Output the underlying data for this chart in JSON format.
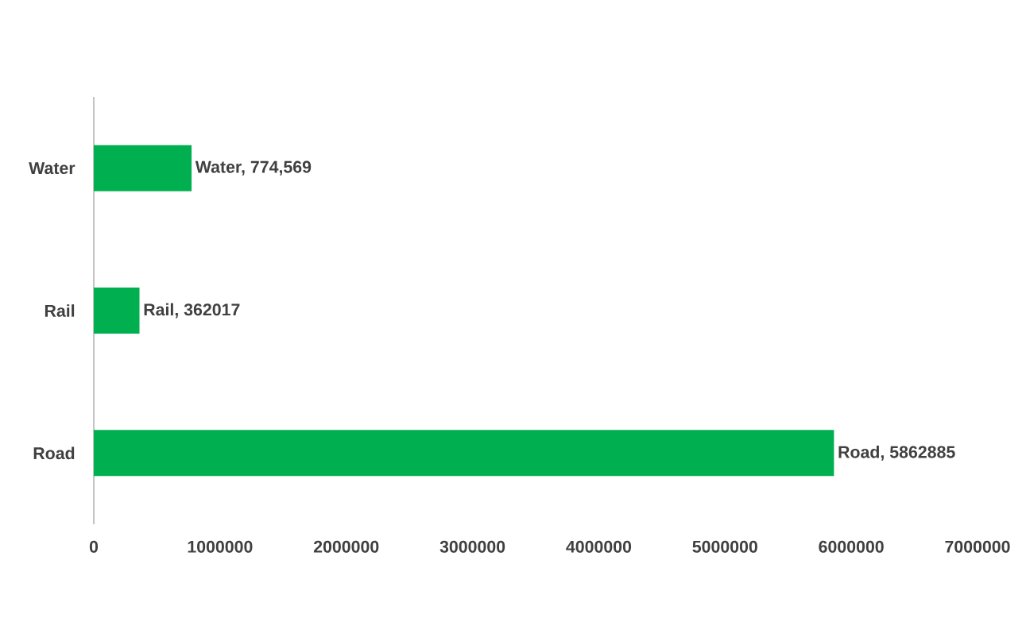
{
  "chart_data": {
    "type": "bar",
    "orientation": "horizontal",
    "categories": [
      "Water",
      "Rail",
      "Road"
    ],
    "values": [
      774569,
      362017,
      5862885
    ],
    "value_labels": [
      "Water, 774,569",
      "Rail, 362017",
      "Road, 5862885"
    ],
    "color": "#00b050",
    "xlim": [
      0,
      7000000
    ],
    "xticks": [
      0,
      1000000,
      2000000,
      3000000,
      4000000,
      5000000,
      6000000,
      7000000
    ]
  }
}
